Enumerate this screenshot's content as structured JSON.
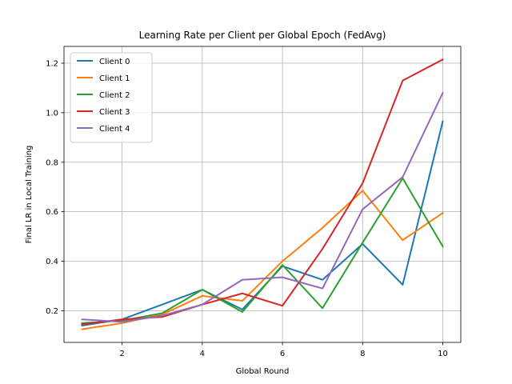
{
  "chart_data": {
    "type": "line",
    "title": "Learning Rate per Client per Global Epoch (FedAvg)",
    "xlabel": "Global Round",
    "ylabel": "Final LR in Local Training",
    "xlim": [
      0.55,
      10.45
    ],
    "ylim": [
      0.072,
      1.268
    ],
    "xticks": [
      2,
      4,
      6,
      8,
      10
    ],
    "yticks": [
      0.2,
      0.4,
      0.6,
      0.8,
      1.0,
      1.2
    ],
    "xtick_labels": [
      "2",
      "4",
      "6",
      "8",
      "10"
    ],
    "ytick_labels": [
      "0.2",
      "0.4",
      "0.6",
      "0.8",
      "1.0",
      "1.2"
    ],
    "grid": true,
    "legend_position": "upper left",
    "x": [
      1,
      2,
      3,
      4,
      5,
      6,
      7,
      8,
      9,
      10
    ],
    "series": [
      {
        "name": "Client 0",
        "color": "#1f77b4",
        "values": [
          0.14,
          0.165,
          0.225,
          0.285,
          0.205,
          0.38,
          0.325,
          0.47,
          0.305,
          0.965
        ]
      },
      {
        "name": "Client 1",
        "color": "#ff7f0e",
        "values": [
          0.125,
          0.15,
          0.185,
          0.26,
          0.24,
          0.4,
          0.535,
          0.685,
          0.485,
          0.595
        ]
      },
      {
        "name": "Client 2",
        "color": "#2ca02c",
        "values": [
          0.15,
          0.16,
          0.19,
          0.285,
          0.195,
          0.385,
          0.21,
          0.475,
          0.735,
          0.46
        ]
      },
      {
        "name": "Client 3",
        "color": "#d62728",
        "values": [
          0.145,
          0.165,
          0.175,
          0.225,
          0.27,
          0.22,
          0.45,
          0.715,
          1.13,
          1.215
        ]
      },
      {
        "name": "Client 4",
        "color": "#9467bd",
        "values": [
          0.165,
          0.155,
          0.18,
          0.225,
          0.325,
          0.335,
          0.29,
          0.61,
          0.74,
          1.08
        ]
      }
    ]
  }
}
